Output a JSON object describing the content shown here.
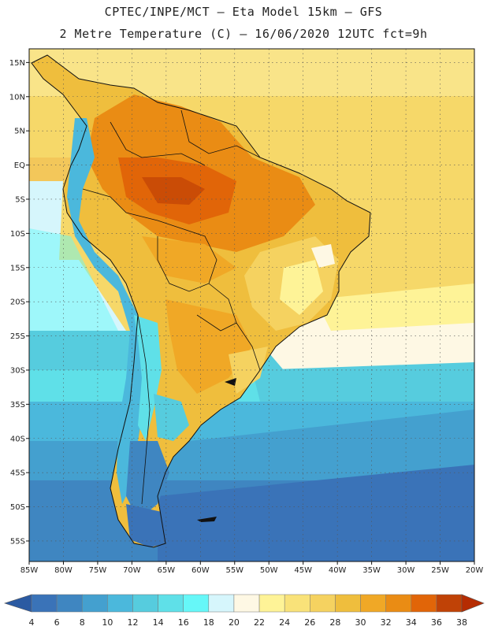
{
  "title_line1": "CPTEC/INPE/MCT –  Eta Model 15km – GFS",
  "title_line2": "2 Metre Temperature (C) – 16/06/2020 12UTC fct=9h",
  "lat_labels": [
    "15N",
    "10N",
    "5N",
    "EQ",
    "5S",
    "10S",
    "15S",
    "20S",
    "25S",
    "30S",
    "35S",
    "40S",
    "45S",
    "50S",
    "55S"
  ],
  "lat_values": [
    15,
    10,
    5,
    0,
    -5,
    -10,
    -15,
    -20,
    -25,
    -30,
    -35,
    -40,
    -45,
    -50,
    -55
  ],
  "lon_labels": [
    "85W",
    "80W",
    "75W",
    "70W",
    "65W",
    "60W",
    "55W",
    "50W",
    "45W",
    "40W",
    "35W",
    "30W",
    "25W",
    "20W"
  ],
  "lon_values": [
    -85,
    -80,
    -75,
    -70,
    -65,
    -60,
    -55,
    -50,
    -45,
    -40,
    -35,
    -30,
    -25,
    -20
  ],
  "map_extent": {
    "lon_min": -85,
    "lon_max": -20,
    "lat_min": -58,
    "lat_max": 17
  },
  "colorbar": {
    "labels": [
      "4",
      "6",
      "8",
      "10",
      "12",
      "14",
      "16",
      "18",
      "20",
      "22",
      "24",
      "26",
      "28",
      "30",
      "32",
      "34",
      "36",
      "38"
    ],
    "colors": [
      "#3a73b8",
      "#3f86c1",
      "#44a0cf",
      "#4bb8dc",
      "#56ccde",
      "#5fe0e8",
      "#66f7f8",
      "#d6f6fc",
      "#fef8e4",
      "#fef397",
      "#f9e279",
      "#f5d260",
      "#efbe3d",
      "#f0a826",
      "#ea8c14",
      "#e16508",
      "#c04206"
    ],
    "low_arrow_color": "#2b5aa2",
    "high_arrow_color": "#b52c02"
  }
}
